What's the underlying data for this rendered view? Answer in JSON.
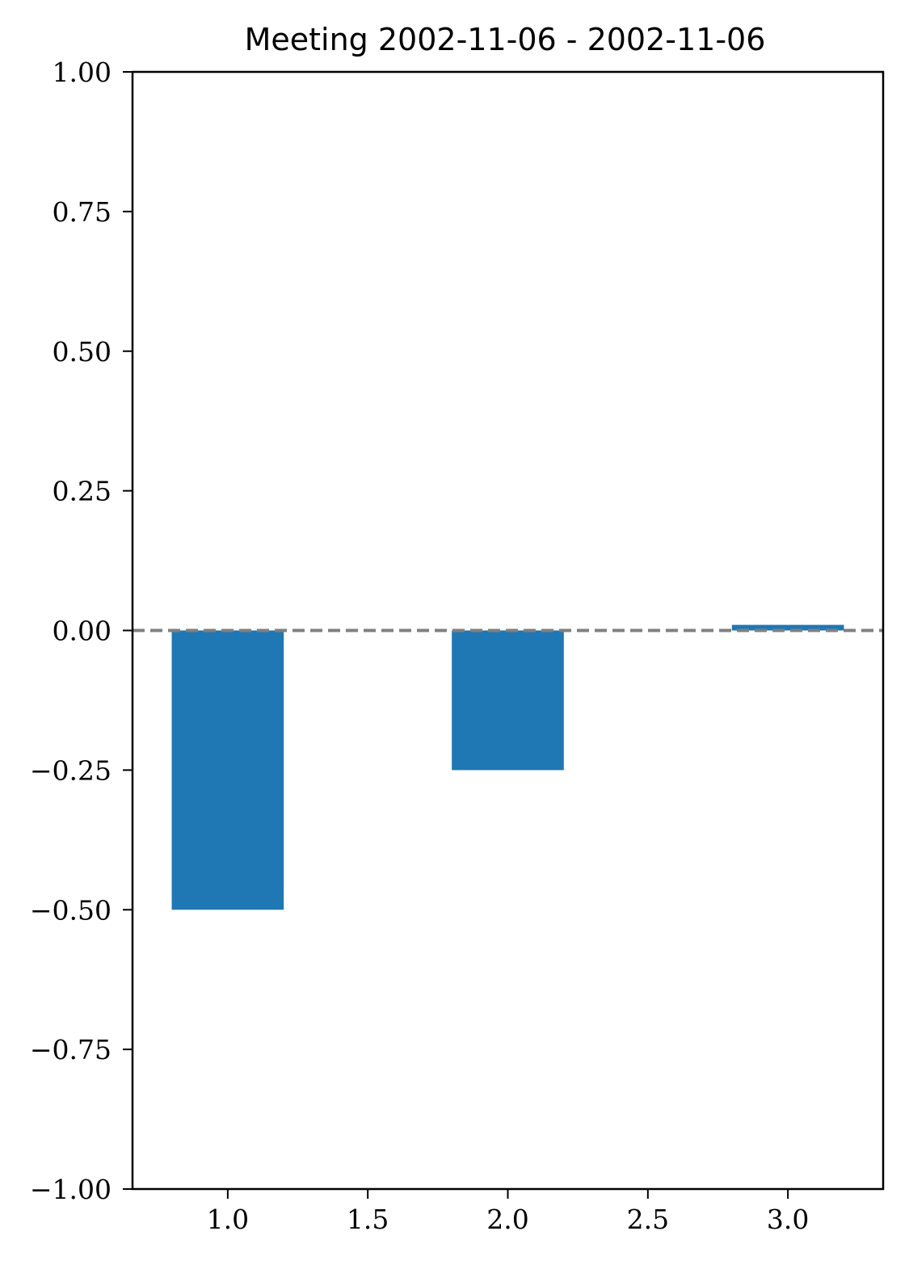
{
  "chart_data": {
    "type": "bar",
    "title": "Meeting 2002-11-06 - 2002-11-06",
    "xlabel": "",
    "ylabel": "",
    "x": [
      1.0,
      2.0,
      3.0
    ],
    "values": [
      -0.5,
      -0.25,
      0.01
    ],
    "bar_width": 0.4,
    "xlim": [
      0.66,
      3.34
    ],
    "ylim": [
      -1.0,
      1.0
    ],
    "xticks": [
      1.0,
      1.5,
      2.0,
      2.5,
      3.0
    ],
    "xtick_labels": [
      "1.0",
      "1.5",
      "2.0",
      "2.5",
      "3.0"
    ],
    "yticks": [
      1.0,
      0.75,
      0.5,
      0.25,
      0.0,
      -0.25,
      -0.5,
      -0.75,
      -1.0
    ],
    "ytick_labels": [
      "1.00",
      "0.75",
      "0.50",
      "0.25",
      "0.00",
      "−0.25",
      "−0.50",
      "−0.75",
      "−1.00"
    ],
    "reference_line": {
      "y": 0.0,
      "style": "dashed",
      "color": "#808080"
    },
    "bar_color": "#1f77b4",
    "grid": false,
    "legend": "none"
  }
}
